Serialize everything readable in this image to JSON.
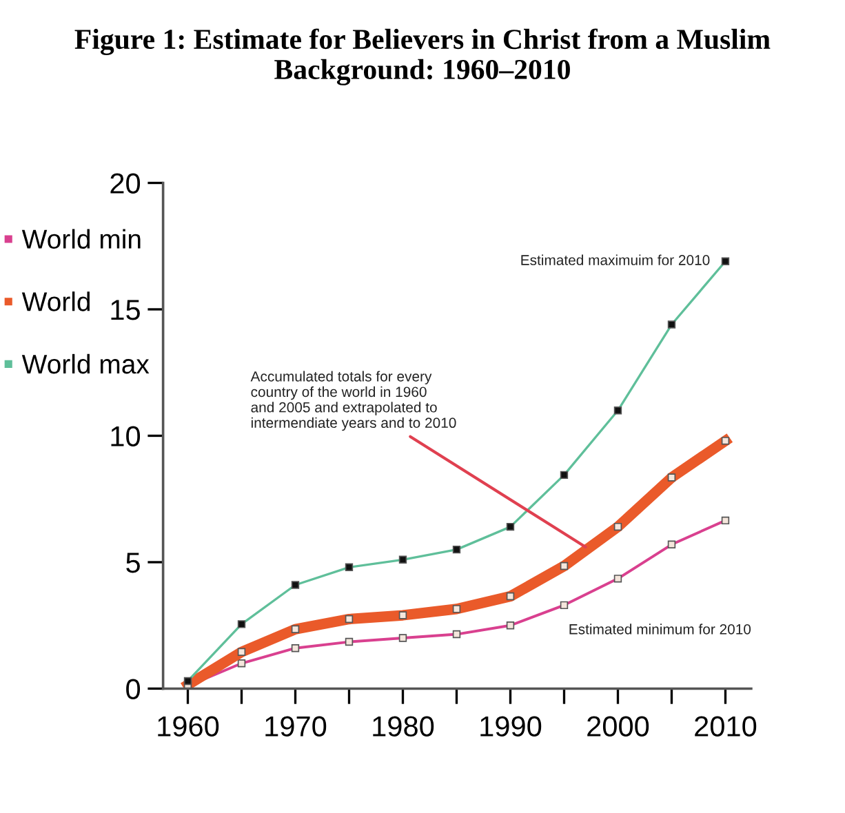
{
  "chart_data": {
    "type": "line",
    "title": "Figure 1: Estimate for Believers in Christ from a Muslim Background: 1960–2010",
    "x": [
      1960,
      1965,
      1970,
      1975,
      1980,
      1985,
      1990,
      1995,
      2000,
      2005,
      2010
    ],
    "series": [
      {
        "name": "World min",
        "color": "#d9408f",
        "values": [
          0.1,
          1.0,
          1.6,
          1.85,
          2.0,
          2.15,
          2.5,
          3.3,
          4.35,
          5.7,
          6.65
        ]
      },
      {
        "name": "World",
        "color": "#ea5a2a",
        "values": [
          0.15,
          1.45,
          2.35,
          2.75,
          2.9,
          3.15,
          3.65,
          4.85,
          6.4,
          8.35,
          9.8
        ]
      },
      {
        "name": "World max",
        "color": "#5fbf9a",
        "values": [
          0.3,
          2.55,
          4.1,
          4.8,
          5.1,
          5.5,
          6.4,
          8.45,
          11.0,
          14.4,
          16.9
        ]
      }
    ],
    "xlim": [
      1957.7,
      2012.4
    ],
    "ylim": [
      0,
      20
    ],
    "xticks": [
      1960,
      {
        "value": 1965,
        "label": null
      },
      1970,
      {
        "value": 1975,
        "label": null
      },
      1980,
      {
        "value": 1985,
        "label": null
      },
      1990,
      {
        "value": 1995,
        "label": null
      },
      2000,
      {
        "value": 2005,
        "label": null
      },
      2010
    ],
    "yticks": [
      0,
      5,
      10,
      15,
      20
    ],
    "marker": "square",
    "legend": "left",
    "grid": false,
    "annotations": [
      {
        "text": "Estimated maximuim for 2010",
        "x": 2010,
        "y": 16.9
      },
      {
        "text": "Accumulated totals for every\ncountry of the world in 1960\nand 2005 and extrapolated to\nintermendiate years and to 2010",
        "x": 1997,
        "y": 5.6
      },
      "Estimated minimum for 2010"
    ]
  }
}
